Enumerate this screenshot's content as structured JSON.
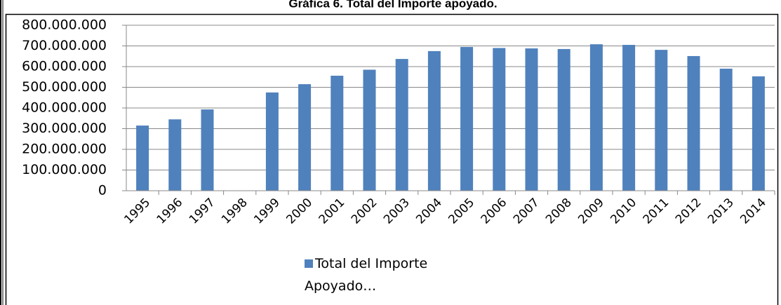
{
  "chart_data": {
    "type": "bar",
    "title": "Gráfica 6. Total del Importe apoyado.",
    "categories": [
      "1995",
      "1996",
      "1997",
      "1998",
      "1999",
      "2000",
      "2001",
      "2002",
      "2003",
      "2004",
      "2005",
      "2006",
      "2007",
      "2008",
      "2009",
      "2010",
      "2011",
      "2012",
      "2013",
      "2014"
    ],
    "series": [
      {
        "name": "Total del Importe Apoyado…",
        "color": "#4f81bd",
        "values": [
          315000000,
          345000000,
          393000000,
          null,
          475000000,
          515000000,
          556000000,
          585000000,
          637000000,
          675000000,
          695000000,
          690000000,
          688000000,
          685000000,
          708000000,
          705000000,
          681000000,
          651000000,
          590000000,
          553000000
        ]
      }
    ],
    "ylim": [
      0,
      800000000
    ],
    "yticks": [
      0,
      {
        "value": 100000000,
        "label": "100.000.000"
      },
      {
        "value": 200000000,
        "label": "200.000.000"
      },
      {
        "value": 300000000,
        "label": "300.000.000"
      },
      {
        "value": 400000000,
        "label": "400.000.000"
      },
      {
        "value": 500000000,
        "label": "500.000.000"
      },
      {
        "value": 600000000,
        "label": "600.000.000"
      },
      {
        "value": 700000000,
        "label": "700.000.000"
      },
      {
        "value": 800000000,
        "label": "800.000.000"
      }
    ],
    "grid": true,
    "legend": "bottom"
  }
}
